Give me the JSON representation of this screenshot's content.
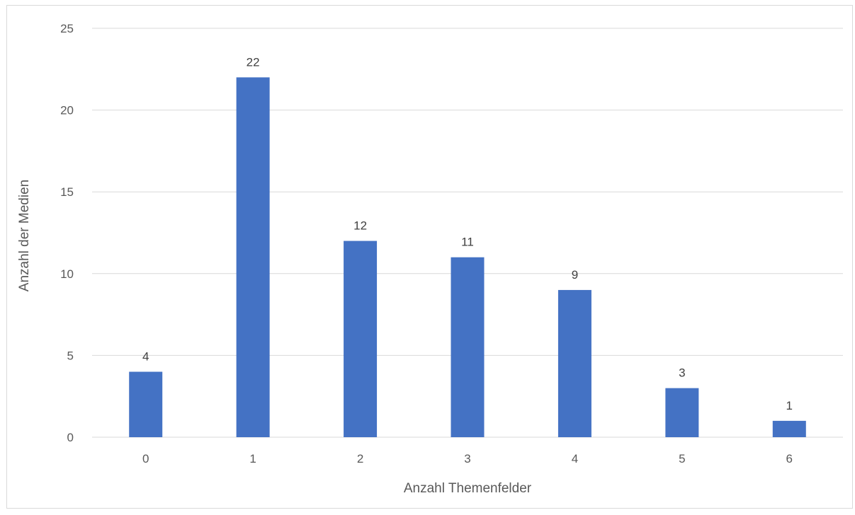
{
  "chart_data": {
    "type": "bar",
    "categories": [
      "0",
      "1",
      "2",
      "3",
      "4",
      "5",
      "6"
    ],
    "values": [
      4,
      22,
      12,
      11,
      9,
      3,
      1
    ],
    "data_labels": [
      "4",
      "22",
      "12",
      "11",
      "9",
      "3",
      "1"
    ],
    "xlabel": "Anzahl Themenfelder",
    "ylabel": "Anzahl der Medien",
    "ylim": [
      0,
      25
    ],
    "yticks": [
      "0",
      "5",
      "10",
      "15",
      "20",
      "25"
    ],
    "grid": true,
    "legend": "none",
    "bar_color": "#4472c4",
    "grid_color": "#d9d9d9"
  }
}
